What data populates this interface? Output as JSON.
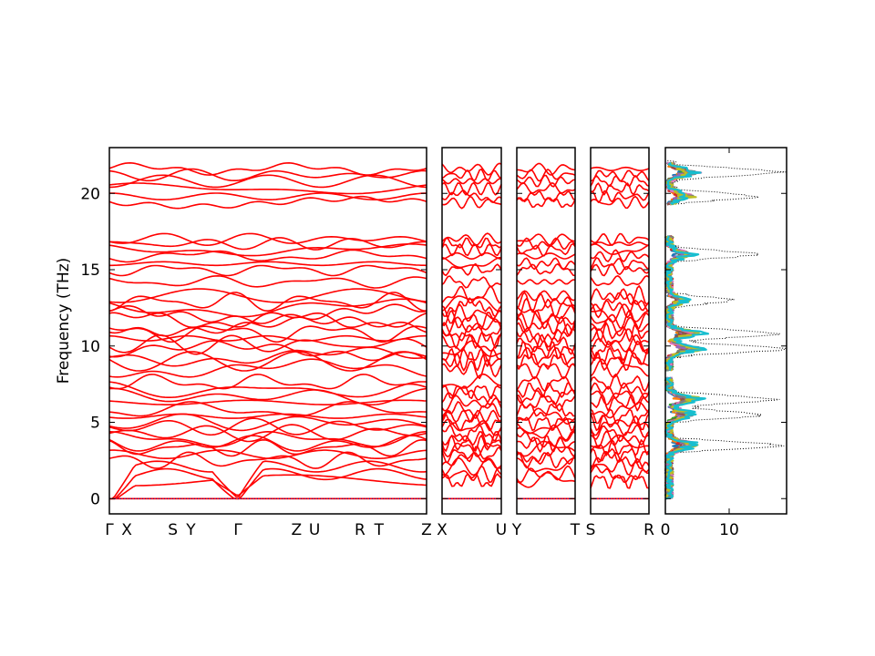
{
  "chart_data": {
    "type": "line",
    "title": "",
    "ylabel": "Frequency (THz)",
    "ylim": [
      -1,
      23
    ],
    "yticks": [
      "0",
      "5",
      "10",
      "15",
      "20"
    ],
    "ytick_values": [
      0,
      5,
      10,
      15,
      20
    ],
    "grid": false,
    "colors": {
      "bands": "#ff0000",
      "zero_line": "#0000aa",
      "dos_total": "#000000"
    },
    "band_panels": [
      {
        "name": "segment-1",
        "points": [
          "Γ",
          "X",
          "S",
          "Y",
          "Γ",
          "Z",
          "U",
          "R",
          "T",
          "Z"
        ],
        "point_positions": [
          0,
          0.055,
          0.2,
          0.257,
          0.405,
          0.59,
          0.647,
          0.79,
          0.85,
          1
        ]
      },
      {
        "name": "segment-2",
        "points": [
          "X",
          "U"
        ],
        "point_positions": [
          0,
          1
        ]
      },
      {
        "name": "segment-3",
        "points": [
          "Y",
          "T"
        ],
        "point_positions": [
          0,
          1
        ]
      },
      {
        "name": "segment-4",
        "points": [
          "S",
          "R"
        ],
        "point_positions": [
          0,
          1
        ]
      }
    ],
    "band_frequency_levels": [
      0.0,
      1.2,
      1.6,
      2.1,
      2.5,
      2.9,
      3.3,
      3.6,
      3.9,
      4.3,
      4.7,
      5.0,
      5.4,
      5.8,
      6.3,
      6.7,
      7.1,
      7.6,
      8.5,
      9.0,
      9.3,
      9.7,
      10.1,
      10.5,
      10.9,
      11.3,
      11.7,
      12.1,
      12.5,
      12.9,
      13.3,
      14.2,
      15.0,
      15.4,
      15.9,
      16.3,
      16.7,
      17.0,
      19.4,
      19.8,
      20.3,
      20.8,
      21.2,
      21.6
    ],
    "dos": {
      "xlim": [
        0,
        19
      ],
      "xticks": [
        "0",
        "10"
      ],
      "xtick_values": [
        0,
        10
      ],
      "series_colors": [
        "#1f77b4",
        "#ff7f0e",
        "#2ca02c",
        "#d62728",
        "#9467bd",
        "#8c564b",
        "#e377c2",
        "#7f7f7f",
        "#bcbd22",
        "#17becf"
      ],
      "total_peaks": [
        {
          "f": 3.5,
          "v": 18
        },
        {
          "f": 5.5,
          "v": 15
        },
        {
          "f": 6.5,
          "v": 17
        },
        {
          "f": 9.8,
          "v": 18
        },
        {
          "f": 10.8,
          "v": 17
        },
        {
          "f": 13.0,
          "v": 10
        },
        {
          "f": 16.0,
          "v": 14
        },
        {
          "f": 19.8,
          "v": 14
        },
        {
          "f": 21.4,
          "v": 18
        }
      ]
    }
  }
}
